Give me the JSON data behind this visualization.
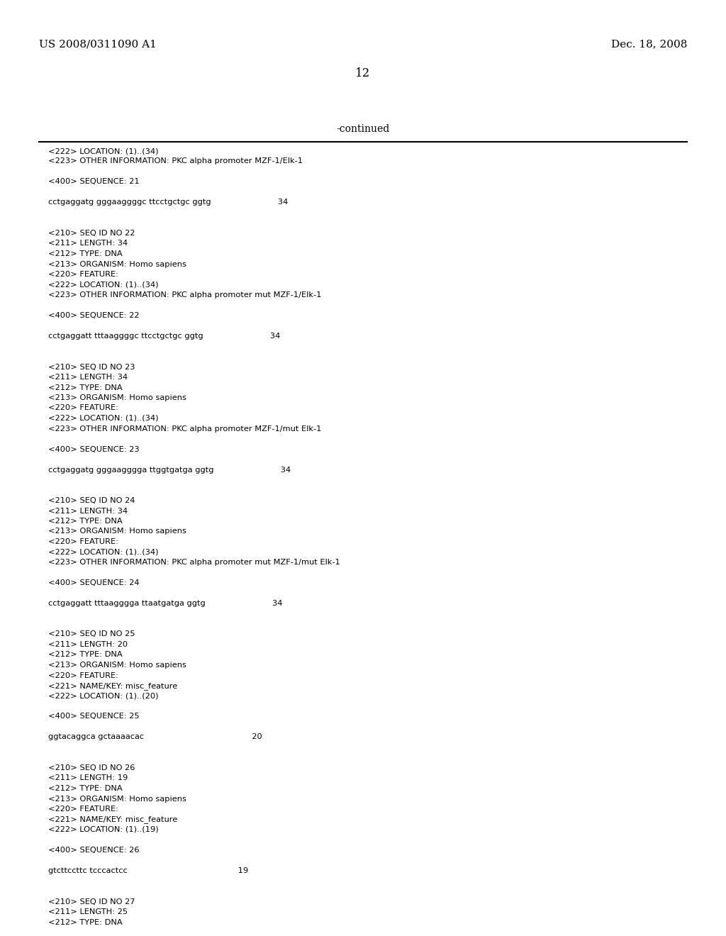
{
  "background_color": "#ffffff",
  "top_left_text": "US 2008/0311090 A1",
  "top_right_text": "Dec. 18, 2008",
  "page_number": "12",
  "continued_text": "-continued",
  "text_color": "#000000",
  "mono_font": "Courier New",
  "serif_font": "DejaVu Serif",
  "lines": [
    "<222> LOCATION: (1)..(34)",
    "<223> OTHER INFORMATION: PKC alpha promoter MZF-1/Elk-1",
    "",
    "<400> SEQUENCE: 21",
    "",
    "cctgaggatg gggaaggggc ttcctgctgc ggtg                          34",
    "",
    "",
    "<210> SEQ ID NO 22",
    "<211> LENGTH: 34",
    "<212> TYPE: DNA",
    "<213> ORGANISM: Homo sapiens",
    "<220> FEATURE:",
    "<222> LOCATION: (1)..(34)",
    "<223> OTHER INFORMATION: PKC alpha promoter mut MZF-1/Elk-1",
    "",
    "<400> SEQUENCE: 22",
    "",
    "cctgaggatt tttaaggggc ttcctgctgc ggtg                          34",
    "",
    "",
    "<210> SEQ ID NO 23",
    "<211> LENGTH: 34",
    "<212> TYPE: DNA",
    "<213> ORGANISM: Homo sapiens",
    "<220> FEATURE:",
    "<222> LOCATION: (1)..(34)",
    "<223> OTHER INFORMATION: PKC alpha promoter MZF-1/mut Elk-1",
    "",
    "<400> SEQUENCE: 23",
    "",
    "cctgaggatg gggaagggga ttggtgatga ggtg                          34",
    "",
    "",
    "<210> SEQ ID NO 24",
    "<211> LENGTH: 34",
    "<212> TYPE: DNA",
    "<213> ORGANISM: Homo sapiens",
    "<220> FEATURE:",
    "<222> LOCATION: (1)..(34)",
    "<223> OTHER INFORMATION: PKC alpha promoter mut MZF-1/mut Elk-1",
    "",
    "<400> SEQUENCE: 24",
    "",
    "cctgaggatt tttaagggga ttaatgatga ggtg                          34",
    "",
    "",
    "<210> SEQ ID NO 25",
    "<211> LENGTH: 20",
    "<212> TYPE: DNA",
    "<213> ORGANISM: Homo sapiens",
    "<220> FEATURE:",
    "<221> NAME/KEY: misc_feature",
    "<222> LOCATION: (1)..(20)",
    "",
    "<400> SEQUENCE: 25",
    "",
    "ggtacaggca gctaaaacac                                          20",
    "",
    "",
    "<210> SEQ ID NO 26",
    "<211> LENGTH: 19",
    "<212> TYPE: DNA",
    "<213> ORGANISM: Homo sapiens",
    "<220> FEATURE:",
    "<221> NAME/KEY: misc_feature",
    "<222> LOCATION: (1)..(19)",
    "",
    "<400> SEQUENCE: 26",
    "",
    "gtcttccttc tcccactcc                                           19",
    "",
    "",
    "<210> SEQ ID NO 27",
    "<211> LENGTH: 25",
    "<212> TYPE: DNA"
  ]
}
